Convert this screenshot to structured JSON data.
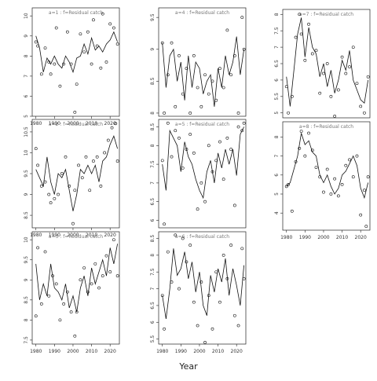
{
  "figure": {
    "xlabel": "Year"
  },
  "style": {
    "line_color": "#111111",
    "point_color": "#111111",
    "label_color": "#777777",
    "background": "#ffffff"
  },
  "chart_data": [
    {
      "type": "line",
      "label": "a=1  :  f=Residual catch",
      "x_ticks": [
        1980,
        1990,
        2000,
        2010,
        2020
      ],
      "y_ticks": [
        5,
        6,
        7,
        8,
        9,
        10
      ],
      "xlim": [
        1978,
        2025
      ],
      "ylim": [
        5,
        10.4
      ],
      "show_x_ticks": true,
      "series": [
        {
          "x": [
            1980,
            1982,
            1984,
            1986,
            1988,
            1990,
            1992,
            1994,
            1996,
            1998,
            2000,
            2002,
            2004,
            2006,
            2008,
            2010,
            2012,
            2014,
            2016,
            2018,
            2020,
            2022,
            2024
          ],
          "values": [
            9.0,
            8.4,
            7.2,
            7.9,
            7.6,
            8.0,
            7.6,
            7.4,
            8.0,
            7.7,
            7.2,
            7.9,
            8.0,
            8.6,
            8.1,
            8.9,
            8.3,
            8.5,
            8.2,
            8.6,
            8.8,
            9.2,
            8.7
          ]
        },
        {
          "x": [
            1980,
            1981,
            1983,
            1985,
            1987,
            1988,
            1990,
            1991,
            1993,
            1995,
            1997,
            1999,
            2001,
            2002,
            2004,
            2006,
            2008,
            2010,
            2011,
            2013,
            2015,
            2016,
            2018,
            2020,
            2022,
            2024
          ],
          "values": [
            8.7,
            8.5,
            7.1,
            8.4,
            7.7,
            7.1,
            7.6,
            9.4,
            6.5,
            7.6,
            9.2,
            7.6,
            5.2,
            6.6,
            9.1,
            8.2,
            9.2,
            7.6,
            9.8,
            8.5,
            7.4,
            10.1,
            7.7,
            9.6,
            9.4,
            8.6
          ]
        }
      ]
    },
    {
      "type": "line",
      "label": "a=2  :  f=Residual catch",
      "x_ticks": [
        1980,
        1990,
        2000,
        2010,
        2020
      ],
      "y_ticks": [
        8.5,
        9.0,
        9.5,
        10.0,
        10.5
      ],
      "xlim": [
        1978,
        2025
      ],
      "ylim": [
        8.2,
        10.8
      ],
      "show_x_ticks": true,
      "series": [
        {
          "x": [
            1980,
            1982,
            1984,
            1986,
            1988,
            1990,
            1992,
            1994,
            1996,
            1998,
            2000,
            2002,
            2004,
            2006,
            2008,
            2010,
            2012,
            2014,
            2016,
            2018,
            2020,
            2022,
            2024
          ],
          "values": [
            9.6,
            9.4,
            9.2,
            9.9,
            9.3,
            9.0,
            9.5,
            9.4,
            9.6,
            9.1,
            8.6,
            9.0,
            9.6,
            9.5,
            9.7,
            9.5,
            9.7,
            9.3,
            9.8,
            9.9,
            10.2,
            10.4,
            10.1
          ]
        },
        {
          "x": [
            1980,
            1981,
            1983,
            1985,
            1987,
            1988,
            1990,
            1992,
            1994,
            1996,
            1998,
            2000,
            2001,
            2003,
            2005,
            2007,
            2009,
            2011,
            2013,
            2015,
            2017,
            2019,
            2021,
            2023,
            2024
          ],
          "values": [
            10.1,
            9.7,
            9.2,
            9.3,
            9.0,
            8.8,
            8.9,
            9.0,
            9.5,
            9.9,
            9.2,
            8.3,
            9.1,
            9.7,
            9.4,
            9.9,
            9.1,
            9.8,
            9.9,
            9.2,
            10.0,
            10.3,
            10.6,
            10.7,
            9.8
          ]
        }
      ]
    },
    {
      "type": "line",
      "label": "a=3  :  f=Residual catch",
      "x_ticks": [
        1980,
        1990,
        2000,
        2010,
        2020
      ],
      "y_ticks": [
        7.5,
        8.0,
        8.5,
        9.0,
        9.5,
        10.0
      ],
      "xlim": [
        1978,
        2025
      ],
      "ylim": [
        7.4,
        10.2
      ],
      "show_x_ticks": true,
      "series": [
        {
          "x": [
            1980,
            1982,
            1984,
            1986,
            1988,
            1990,
            1992,
            1994,
            1996,
            1998,
            2000,
            2002,
            2004,
            2006,
            2008,
            2010,
            2012,
            2014,
            2016,
            2018,
            2020,
            2022,
            2024
          ],
          "values": [
            9.4,
            8.5,
            8.9,
            8.6,
            9.4,
            8.8,
            8.7,
            8.5,
            8.9,
            8.3,
            8.6,
            8.2,
            8.8,
            9.1,
            8.6,
            9.3,
            8.9,
            9.2,
            9.5,
            9.1,
            9.8,
            9.4,
            9.9
          ]
        },
        {
          "x": [
            1980,
            1981,
            1983,
            1985,
            1987,
            1989,
            1991,
            1993,
            1995,
            1997,
            1999,
            2001,
            2002,
            2004,
            2006,
            2008,
            2010,
            2012,
            2014,
            2016,
            2018,
            2020,
            2022,
            2024
          ],
          "values": [
            8.1,
            9.8,
            8.4,
            9.7,
            8.6,
            9.1,
            8.9,
            8.0,
            8.4,
            8.7,
            8.2,
            7.6,
            8.2,
            9.0,
            9.3,
            8.7,
            8.9,
            9.4,
            8.8,
            9.1,
            9.6,
            9.2,
            10.0,
            9.1
          ]
        }
      ]
    },
    {
      "type": "line",
      "label": "a=4  :  f=Residual catch",
      "x_ticks": [],
      "y_ticks": [
        8.0,
        8.5,
        9.0,
        9.5
      ],
      "xlim": [
        1978,
        2025
      ],
      "ylim": [
        7.95,
        9.65
      ],
      "show_x_ticks": false,
      "series": [
        {
          "x": [
            1980,
            1982,
            1984,
            1986,
            1988,
            1990,
            1992,
            1994,
            1996,
            1998,
            2000,
            2002,
            2004,
            2006,
            2008,
            2010,
            2012,
            2014,
            2016,
            2018,
            2020,
            2022,
            2024
          ],
          "values": [
            9.1,
            8.4,
            8.9,
            9.0,
            8.5,
            8.8,
            8.2,
            8.9,
            8.4,
            8.8,
            8.7,
            8.3,
            8.5,
            8.6,
            8.1,
            8.7,
            8.4,
            8.9,
            8.6,
            8.8,
            9.2,
            8.6,
            9.0
          ]
        },
        {
          "x": [
            1980,
            1981,
            1983,
            1985,
            1987,
            1989,
            1991,
            1993,
            1995,
            1997,
            1999,
            2001,
            2003,
            2005,
            2007,
            2009,
            2011,
            2013,
            2015,
            2017,
            2019,
            2021,
            2023,
            2024
          ],
          "values": [
            9.1,
            8.0,
            8.6,
            9.1,
            8.1,
            8.9,
            8.3,
            8.7,
            8.0,
            8.9,
            8.4,
            8.1,
            8.6,
            8.3,
            8.5,
            8.2,
            8.7,
            8.4,
            9.3,
            8.6,
            8.9,
            8.0,
            9.5,
            9.0
          ]
        }
      ]
    },
    {
      "type": "line",
      "label": "a=5  :  f=Residual catch",
      "x_ticks": [],
      "y_ticks": [
        6.0,
        6.5,
        7.0,
        7.5,
        8.0,
        8.5
      ],
      "xlim": [
        1978,
        2025
      ],
      "ylim": [
        5.8,
        8.7
      ],
      "show_x_ticks": false,
      "series": [
        {
          "x": [
            1980,
            1982,
            1984,
            1986,
            1988,
            1990,
            1992,
            1994,
            1996,
            1998,
            2000,
            2002,
            2004,
            2006,
            2008,
            2010,
            2012,
            2014,
            2016,
            2018,
            2020,
            2022,
            2024
          ],
          "values": [
            7.5,
            6.8,
            8.4,
            8.2,
            8.0,
            7.3,
            8.1,
            7.7,
            7.5,
            7.1,
            6.8,
            6.6,
            7.3,
            7.6,
            7.0,
            7.8,
            7.4,
            7.9,
            7.5,
            7.9,
            7.2,
            8.3,
            8.5
          ]
        },
        {
          "x": [
            1980,
            1981,
            1983,
            1985,
            1987,
            1989,
            1991,
            1993,
            1995,
            1997,
            1999,
            2001,
            2003,
            2005,
            2007,
            2009,
            2011,
            2013,
            2015,
            2017,
            2019,
            2021,
            2023,
            2024
          ],
          "values": [
            7.6,
            5.9,
            8.6,
            7.7,
            8.4,
            8.2,
            7.4,
            7.9,
            8.3,
            7.8,
            6.3,
            7.0,
            6.5,
            8.0,
            7.3,
            7.6,
            8.1,
            7.1,
            8.2,
            7.9,
            6.4,
            8.5,
            8.4,
            8.6
          ]
        }
      ]
    },
    {
      "type": "line",
      "label": "a=6  :  f=Residual catch",
      "x_ticks": [
        1980,
        1990,
        2000,
        2010,
        2020
      ],
      "y_ticks": [
        5.5,
        6.0,
        6.5,
        7.0,
        7.5,
        8.0,
        8.5
      ],
      "xlim": [
        1978,
        2025
      ],
      "ylim": [
        5.35,
        8.7
      ],
      "show_x_ticks": true,
      "series": [
        {
          "x": [
            1980,
            1982,
            1984,
            1986,
            1988,
            1990,
            1992,
            1994,
            1996,
            1998,
            2000,
            2002,
            2004,
            2006,
            2008,
            2010,
            2012,
            2014,
            2016,
            2018,
            2020,
            2022,
            2024
          ],
          "values": [
            6.8,
            6.1,
            7.0,
            8.2,
            7.4,
            7.6,
            8.1,
            7.3,
            7.8,
            6.9,
            7.5,
            6.5,
            6.2,
            7.4,
            6.9,
            7.6,
            7.2,
            7.9,
            6.8,
            7.6,
            7.1,
            6.5,
            7.7
          ]
        },
        {
          "x": [
            1980,
            1981,
            1983,
            1985,
            1987,
            1989,
            1991,
            1993,
            1995,
            1997,
            1999,
            2001,
            2003,
            2005,
            2007,
            2009,
            2011,
            2013,
            2015,
            2017,
            2019,
            2021,
            2023,
            2024
          ],
          "values": [
            6.8,
            5.8,
            8.1,
            7.2,
            8.6,
            7.0,
            8.5,
            7.8,
            8.3,
            6.6,
            5.9,
            7.2,
            5.4,
            6.8,
            5.8,
            7.5,
            6.6,
            8.0,
            7.3,
            8.3,
            6.2,
            5.9,
            8.2,
            7.3
          ]
        }
      ]
    },
    {
      "type": "line",
      "label": "a=7  :  f=Residual catch",
      "x_ticks": [],
      "y_ticks": [
        5.0,
        5.5,
        6.0,
        6.5,
        7.0,
        7.5,
        8.0
      ],
      "xlim": [
        1978,
        2025
      ],
      "ylim": [
        4.85,
        8.15
      ],
      "show_x_ticks": false,
      "series": [
        {
          "x": [
            1980,
            1982,
            1984,
            1986,
            1988,
            1990,
            1992,
            1994,
            1996,
            1998,
            2000,
            2002,
            2004,
            2006,
            2008,
            2010,
            2012,
            2014,
            2016,
            2018,
            2020,
            2022,
            2024
          ],
          "values": [
            6.1,
            5.2,
            6.3,
            7.4,
            7.9,
            6.7,
            7.6,
            7.0,
            6.8,
            6.1,
            6.5,
            5.8,
            6.3,
            5.6,
            6.0,
            6.6,
            6.3,
            6.9,
            6.0,
            5.7,
            5.4,
            5.3,
            6.0
          ]
        },
        {
          "x": [
            1980,
            1981,
            1983,
            1985,
            1987,
            1988,
            1990,
            1992,
            1994,
            1996,
            1998,
            2000,
            2002,
            2004,
            2006,
            2008,
            2010,
            2012,
            2014,
            2016,
            2018,
            2020,
            2022,
            2024
          ],
          "values": [
            5.8,
            5.0,
            5.5,
            7.3,
            8.0,
            7.4,
            6.6,
            7.7,
            6.8,
            6.9,
            5.6,
            6.2,
            6.5,
            5.5,
            4.9,
            5.7,
            6.7,
            6.2,
            6.4,
            7.0,
            5.9,
            5.2,
            5.0,
            6.1
          ]
        }
      ]
    },
    {
      "type": "line",
      "label": "a=8  :  f=Residual catch",
      "x_ticks": [
        1980,
        1990,
        2000,
        2010,
        2020
      ],
      "y_ticks": [
        4,
        5,
        6,
        7,
        8
      ],
      "xlim": [
        1978,
        2025
      ],
      "ylim": [
        3.1,
        8.8
      ],
      "show_x_ticks": true,
      "series": [
        {
          "x": [
            1980,
            1982,
            1984,
            1986,
            1988,
            1990,
            1992,
            1994,
            1996,
            1998,
            2000,
            2002,
            2004,
            2006,
            2008,
            2010,
            2012,
            2014,
            2016,
            2018,
            2020,
            2022,
            2024
          ],
          "values": [
            5.4,
            5.6,
            6.3,
            7.0,
            8.2,
            7.6,
            7.8,
            7.2,
            7.0,
            6.0,
            5.6,
            6.0,
            5.4,
            5.0,
            5.3,
            6.0,
            6.2,
            6.6,
            7.0,
            6.5,
            5.3,
            4.8,
            5.6
          ]
        },
        {
          "x": [
            1980,
            1981,
            1983,
            1985,
            1987,
            1988,
            1990,
            1992,
            1994,
            1996,
            1998,
            2000,
            2002,
            2004,
            2006,
            2008,
            2010,
            2012,
            2014,
            2016,
            2018,
            2020,
            2022,
            2023,
            2024
          ],
          "values": [
            5.4,
            5.5,
            4.1,
            6.7,
            7.4,
            8.3,
            7.0,
            8.2,
            7.3,
            6.4,
            5.9,
            5.1,
            6.3,
            5.0,
            5.8,
            4.9,
            5.5,
            6.5,
            6.8,
            5.9,
            7.0,
            3.9,
            5.2,
            3.3,
            5.9
          ]
        }
      ]
    }
  ]
}
